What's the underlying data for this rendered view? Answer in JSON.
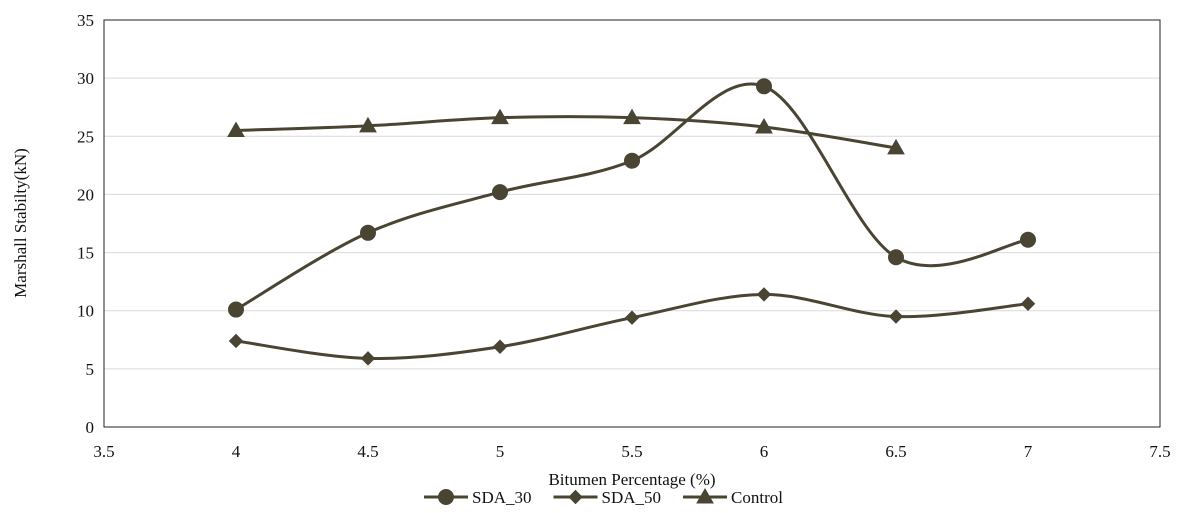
{
  "chart_data": {
    "type": "scatter",
    "title": "",
    "xlabel": "Bitumen Percentage (%)",
    "ylabel": "Marshall Stabilty(kN)",
    "xlim": [
      3.5,
      7.5
    ],
    "ylim": [
      0,
      35
    ],
    "x_ticks": [
      "3.5",
      "4",
      "4.5",
      "5",
      "5.5",
      "6",
      "6.5",
      "7",
      "7.5"
    ],
    "y_ticks": [
      "0",
      "5",
      "10",
      "15",
      "20",
      "25",
      "30",
      "35"
    ],
    "grid": "horizontal",
    "legend_position": "bottom",
    "line_style": "smoothed",
    "series": [
      {
        "name": "SDA_30",
        "marker": "circle",
        "color": "#4a4433",
        "x": [
          4,
          4.5,
          5,
          5.5,
          6,
          6.5,
          7
        ],
        "y": [
          10.1,
          16.7,
          20.2,
          22.9,
          29.3,
          14.6,
          16.1
        ]
      },
      {
        "name": "SDA_50",
        "marker": "diamond",
        "color": "#4a4433",
        "x": [
          4,
          4.5,
          5,
          5.5,
          6,
          6.5,
          7
        ],
        "y": [
          7.4,
          5.9,
          6.9,
          9.4,
          11.4,
          9.5,
          10.6
        ]
      },
      {
        "name": "Control",
        "marker": "triangle",
        "color": "#4a4433",
        "x": [
          4,
          4.5,
          5,
          5.5,
          6,
          6.5
        ],
        "y": [
          25.5,
          25.9,
          26.6,
          26.6,
          25.8,
          24.0
        ]
      }
    ]
  }
}
